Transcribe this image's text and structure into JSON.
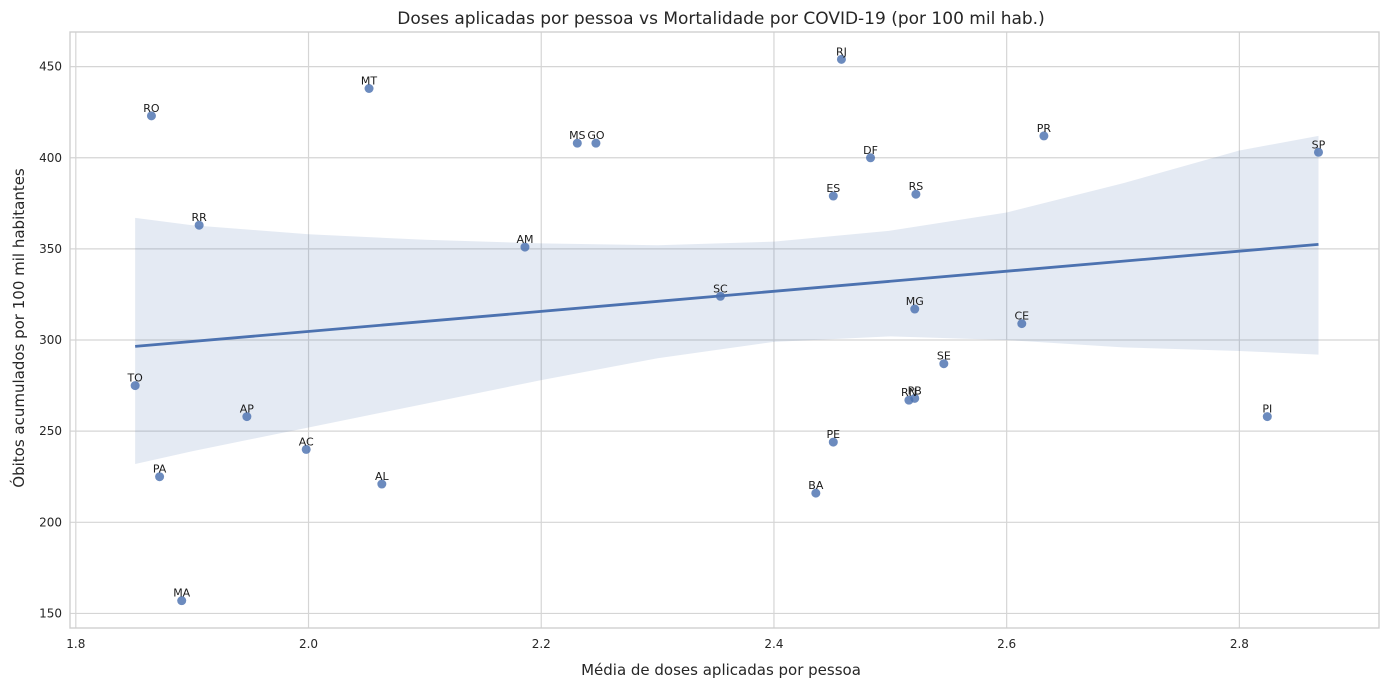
{
  "chart_data": {
    "type": "scatter",
    "title": "Doses aplicadas por pessoa vs Mortalidade por COVID-19 (por 100 mil hab.)",
    "xlabel": "Média de doses aplicadas por pessoa",
    "ylabel": "Óbitos acumulados por 100 mil habitantes",
    "xlim": [
      1.795,
      2.92
    ],
    "ylim": [
      142,
      469
    ],
    "xticks": [
      1.8,
      2.0,
      2.2,
      2.4,
      2.6,
      2.8
    ],
    "xtick_labels": [
      "1.8",
      "2.0",
      "2.2",
      "2.4",
      "2.6",
      "2.8"
    ],
    "yticks": [
      150,
      200,
      250,
      300,
      350,
      400,
      450
    ],
    "ytick_labels": [
      "150",
      "200",
      "250",
      "300",
      "350",
      "400",
      "450"
    ],
    "grid": true,
    "colors": {
      "points": "#4c72b0",
      "regression": "#4c72b0",
      "ci_band": "#4c72b0"
    },
    "points": [
      {
        "label": "RJ",
        "x": 2.458,
        "y": 454
      },
      {
        "label": "MT",
        "x": 2.052,
        "y": 438
      },
      {
        "label": "RO",
        "x": 1.865,
        "y": 423
      },
      {
        "label": "PR",
        "x": 2.632,
        "y": 412
      },
      {
        "label": "MS",
        "x": 2.231,
        "y": 408
      },
      {
        "label": "GO",
        "x": 2.247,
        "y": 408
      },
      {
        "label": "SP",
        "x": 2.868,
        "y": 403
      },
      {
        "label": "DF",
        "x": 2.483,
        "y": 400
      },
      {
        "label": "ES",
        "x": 2.451,
        "y": 379
      },
      {
        "label": "RS",
        "x": 2.522,
        "y": 380
      },
      {
        "label": "RR",
        "x": 1.906,
        "y": 363
      },
      {
        "label": "AM",
        "x": 2.186,
        "y": 351
      },
      {
        "label": "SC",
        "x": 2.354,
        "y": 324
      },
      {
        "label": "MG",
        "x": 2.521,
        "y": 317
      },
      {
        "label": "CE",
        "x": 2.613,
        "y": 309
      },
      {
        "label": "SE",
        "x": 2.546,
        "y": 287
      },
      {
        "label": "TO",
        "x": 1.851,
        "y": 275
      },
      {
        "label": "RN",
        "x": 2.516,
        "y": 267
      },
      {
        "label": "PB",
        "x": 2.521,
        "y": 268
      },
      {
        "label": "PI",
        "x": 2.824,
        "y": 258
      },
      {
        "label": "AP",
        "x": 1.947,
        "y": 258
      },
      {
        "label": "PE",
        "x": 2.451,
        "y": 244
      },
      {
        "label": "AC",
        "x": 1.998,
        "y": 240
      },
      {
        "label": "PA",
        "x": 1.872,
        "y": 225
      },
      {
        "label": "AL",
        "x": 2.063,
        "y": 221
      },
      {
        "label": "BA",
        "x": 2.436,
        "y": 216
      },
      {
        "label": "MA",
        "x": 1.891,
        "y": 157
      }
    ],
    "regression": {
      "x": [
        1.851,
        2.868
      ],
      "y": [
        296.5,
        352.5
      ]
    },
    "confidence_band": {
      "x": [
        1.851,
        1.9,
        2.0,
        2.1,
        2.2,
        2.3,
        2.4,
        2.5,
        2.6,
        2.7,
        2.8,
        2.868
      ],
      "upper": [
        367,
        363,
        358,
        355,
        353,
        352,
        354,
        360,
        370,
        386,
        404,
        412
      ],
      "lower": [
        232,
        239,
        252,
        265,
        278,
        290,
        299,
        302,
        300,
        296,
        294,
        292
      ]
    }
  }
}
